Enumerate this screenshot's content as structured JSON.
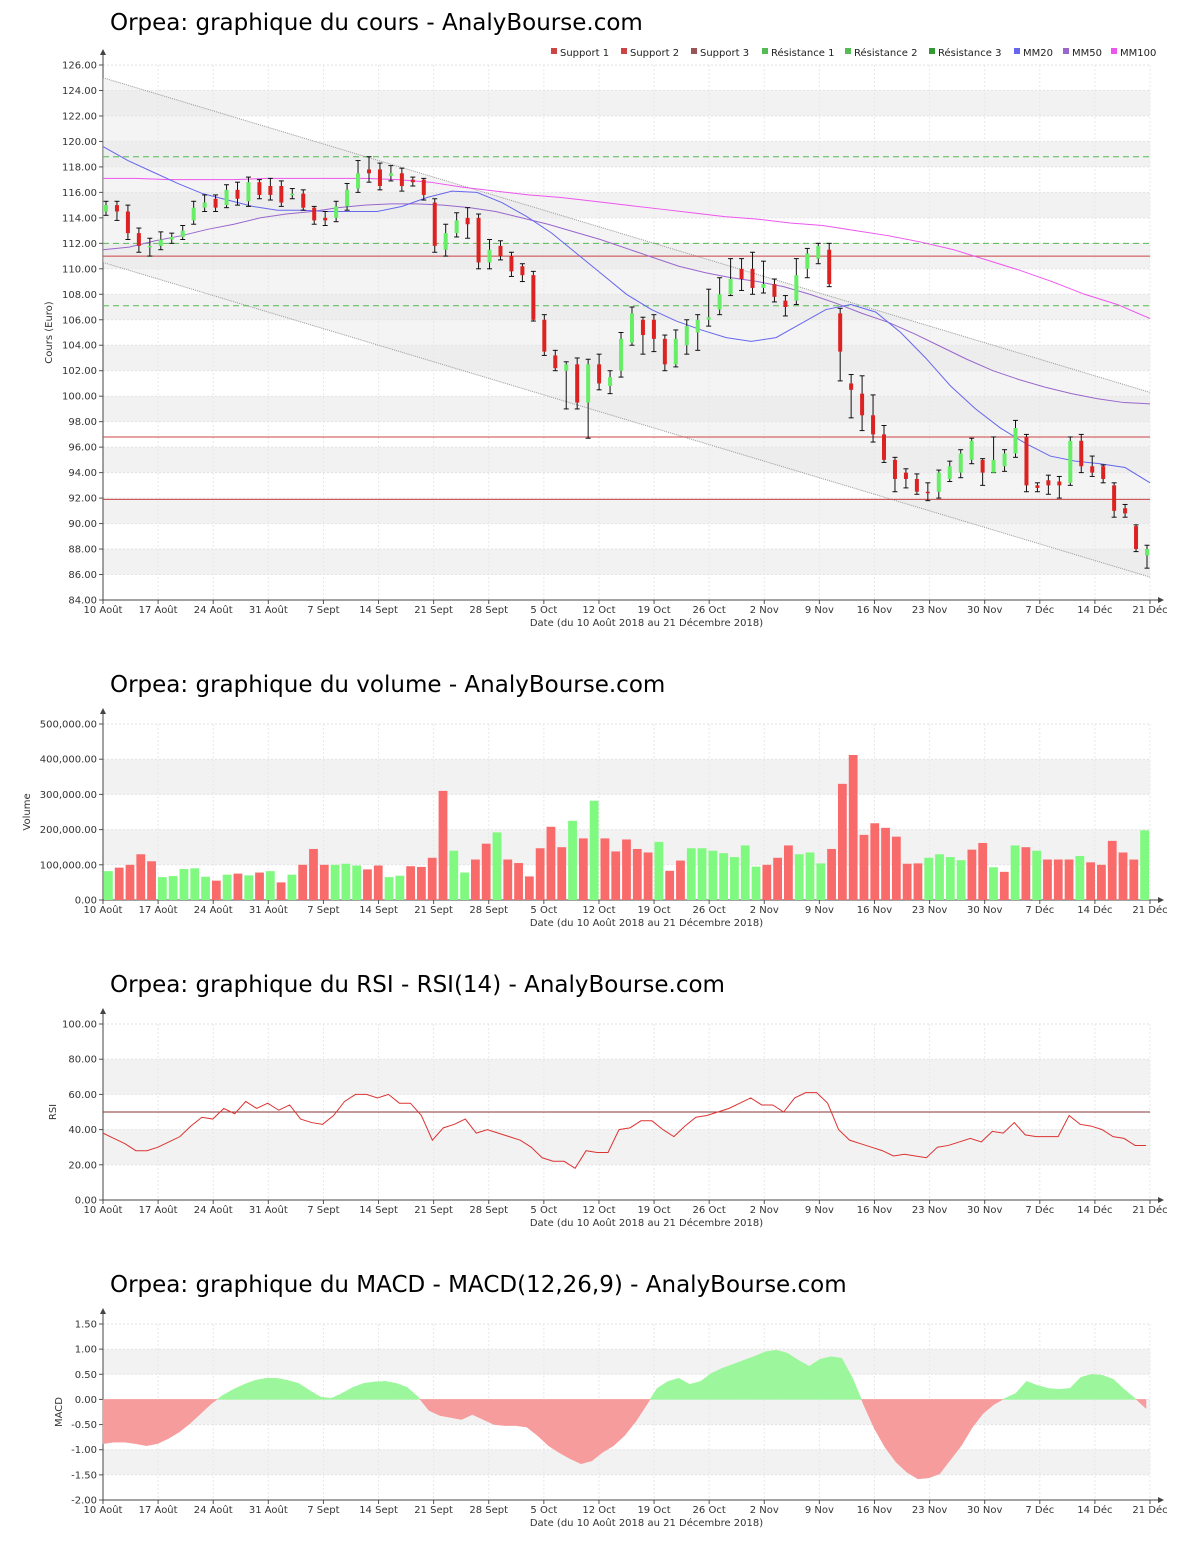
{
  "x_axis": {
    "ticks": [
      "10 Août",
      "17 Août",
      "24 Août",
      "31 Août",
      "7 Sept",
      "14 Sept",
      "21 Sept",
      "28 Sept",
      "5 Oct",
      "12 Oct",
      "19 Oct",
      "26 Oct",
      "2 Nov",
      "9 Nov",
      "16 Nov",
      "23 Nov",
      "30 Nov",
      "7 Déc",
      "14 Déc",
      "21 Déc"
    ],
    "label": "Date (du 10 Août 2018 au 21 Décembre 2018)"
  },
  "colors": {
    "up": "#66ee66",
    "down": "#dd2222",
    "vol_up": "#7ff97f",
    "vol_down": "#f96b6b",
    "mm20": "#6666ee",
    "mm50": "#9966cc",
    "mm100": "#ee55ee",
    "support": "#cc4444",
    "resistance": "#55bb55",
    "rsi": "#dd3333",
    "macd_pos": "#9cf79c",
    "macd_neg": "#f79c9c"
  },
  "chart_data": [
    {
      "type": "candlestick",
      "title": "Orpea: graphique du cours - AnalyBourse.com",
      "ylabel": "Cours (Euro)",
      "ylim": [
        84,
        126
      ],
      "yticks": [
        "84.00",
        "86.00",
        "88.00",
        "90.00",
        "92.00",
        "94.00",
        "96.00",
        "98.00",
        "100.00",
        "102.00",
        "104.00",
        "106.00",
        "108.00",
        "110.00",
        "112.00",
        "114.00",
        "116.00",
        "118.00",
        "120.00",
        "122.00",
        "124.00",
        "126.00"
      ],
      "legend": [
        "Support 1",
        "Support 2",
        "Support 3",
        "Résistance 1",
        "Résistance 2",
        "Résistance 3",
        "MM20",
        "MM50",
        "MM100"
      ],
      "support_levels": [
        111.0,
        96.8,
        91.9
      ],
      "resistance_levels": [
        107.1,
        112.0,
        118.8
      ],
      "candles": [
        [
          114.5,
          115.0,
          115.3,
          114.2
        ],
        [
          115.0,
          114.5,
          115.3,
          113.8
        ],
        [
          114.5,
          112.8,
          115.0,
          112.3
        ],
        [
          112.8,
          111.8,
          113.2,
          111.3
        ],
        [
          111.8,
          111.8,
          112.4,
          111.0
        ],
        [
          111.8,
          112.3,
          112.9,
          111.5
        ],
        [
          112.3,
          112.5,
          112.8,
          112.0
        ],
        [
          112.5,
          113.0,
          113.4,
          112.3
        ],
        [
          113.8,
          114.8,
          115.3,
          113.5
        ],
        [
          114.8,
          115.2,
          115.8,
          114.5
        ],
        [
          115.5,
          114.8,
          115.8,
          114.5
        ],
        [
          115.0,
          116.2,
          116.6,
          114.8
        ],
        [
          116.2,
          115.5,
          116.8,
          115.0
        ],
        [
          115.3,
          116.8,
          117.2,
          114.9
        ],
        [
          116.8,
          115.8,
          117.0,
          115.5
        ],
        [
          116.5,
          115.8,
          117.1,
          115.4
        ],
        [
          116.5,
          115.2,
          116.9,
          114.9
        ],
        [
          115.8,
          115.9,
          116.3,
          115.5
        ],
        [
          115.9,
          114.8,
          116.2,
          114.6
        ],
        [
          114.8,
          113.8,
          114.9,
          113.5
        ],
        [
          114.0,
          113.8,
          114.5,
          113.4
        ],
        [
          114.0,
          114.9,
          115.3,
          113.7
        ],
        [
          114.9,
          116.2,
          116.7,
          114.6
        ],
        [
          116.3,
          117.5,
          118.5,
          116.0
        ],
        [
          117.8,
          117.5,
          118.8,
          116.8
        ],
        [
          117.8,
          116.5,
          118.3,
          116.2
        ],
        [
          117.3,
          117.5,
          118.1,
          116.9
        ],
        [
          117.5,
          116.5,
          117.9,
          116.1
        ],
        [
          117.0,
          116.8,
          117.2,
          116.5
        ],
        [
          117.0,
          115.8,
          117.1,
          115.4
        ],
        [
          115.2,
          111.8,
          115.5,
          111.3
        ],
        [
          111.5,
          112.8,
          113.5,
          111.0
        ],
        [
          112.8,
          113.8,
          114.4,
          112.5
        ],
        [
          114.0,
          113.5,
          114.8,
          112.4
        ],
        [
          114.0,
          110.5,
          114.3,
          110.0
        ],
        [
          110.5,
          111.5,
          112.3,
          110.0
        ],
        [
          111.8,
          111.0,
          112.2,
          110.7
        ],
        [
          111.0,
          109.8,
          111.3,
          109.4
        ],
        [
          110.2,
          109.5,
          110.4,
          109.0
        ],
        [
          109.5,
          106.0,
          109.8,
          105.9
        ],
        [
          106.0,
          103.5,
          106.4,
          103.2
        ],
        [
          103.2,
          102.2,
          103.6,
          102.0
        ],
        [
          102.0,
          102.5,
          102.7,
          99.0
        ],
        [
          102.5,
          99.5,
          103.0,
          99.0
        ],
        [
          99.5,
          102.5,
          102.9,
          96.7
        ],
        [
          102.5,
          101.0,
          103.3,
          100.5
        ],
        [
          100.8,
          101.5,
          102.0,
          100.2
        ],
        [
          102.0,
          104.5,
          105.0,
          101.5
        ],
        [
          104.2,
          106.5,
          107.0,
          104.0
        ],
        [
          106.0,
          104.8,
          106.2,
          103.3
        ],
        [
          106.0,
          104.5,
          106.4,
          103.5
        ],
        [
          104.5,
          102.5,
          104.8,
          102.0
        ],
        [
          102.5,
          104.5,
          105.2,
          102.3
        ],
        [
          104.0,
          105.5,
          106.0,
          103.3
        ],
        [
          105.0,
          106.0,
          106.4,
          103.6
        ],
        [
          106.0,
          106.2,
          108.4,
          105.5
        ],
        [
          106.8,
          108.0,
          109.3,
          106.4
        ],
        [
          108.0,
          109.2,
          110.8,
          107.9
        ],
        [
          110.0,
          109.2,
          110.8,
          108.3
        ],
        [
          110.0,
          108.5,
          111.3,
          108.0
        ],
        [
          108.5,
          108.8,
          110.6,
          108.1
        ],
        [
          108.8,
          107.8,
          109.2,
          107.4
        ],
        [
          107.5,
          107.0,
          107.9,
          106.3
        ],
        [
          107.5,
          109.5,
          110.8,
          107.2
        ],
        [
          110.0,
          111.2,
          111.6,
          109.3
        ],
        [
          110.8,
          111.8,
          112.0,
          110.4
        ],
        [
          111.5,
          108.8,
          112.0,
          108.6
        ],
        [
          106.5,
          103.5,
          106.9,
          101.2
        ],
        [
          101.0,
          100.5,
          101.7,
          98.3
        ],
        [
          100.2,
          98.5,
          101.6,
          97.3
        ],
        [
          98.5,
          97.0,
          100.1,
          96.4
        ],
        [
          97.0,
          95.0,
          97.7,
          94.8
        ],
        [
          95.0,
          93.5,
          95.2,
          92.5
        ],
        [
          94.0,
          93.5,
          94.3,
          92.8
        ],
        [
          93.5,
          92.5,
          93.9,
          92.3
        ],
        [
          92.5,
          92.4,
          93.2,
          91.8
        ],
        [
          92.5,
          94.0,
          94.2,
          92.0
        ],
        [
          93.5,
          94.5,
          94.9,
          93.3
        ],
        [
          94.0,
          95.5,
          95.8,
          93.6
        ],
        [
          95.0,
          96.5,
          96.7,
          94.7
        ],
        [
          95.0,
          94.0,
          95.1,
          93.0
        ],
        [
          94.0,
          95.0,
          96.8,
          94.0
        ],
        [
          94.5,
          95.5,
          95.8,
          94.1
        ],
        [
          95.5,
          97.5,
          98.1,
          95.2
        ],
        [
          96.8,
          93.0,
          97.0,
          92.5
        ],
        [
          93.0,
          92.8,
          93.2,
          92.5
        ],
        [
          93.4,
          93.0,
          93.8,
          92.3
        ],
        [
          93.3,
          93.0,
          93.7,
          92.0
        ],
        [
          93.2,
          96.5,
          96.8,
          93.0
        ],
        [
          96.5,
          94.5,
          97.0,
          94.0
        ],
        [
          94.5,
          94.0,
          95.3,
          93.7
        ],
        [
          94.5,
          93.5,
          94.6,
          93.2
        ],
        [
          93.0,
          91.0,
          93.2,
          90.5
        ],
        [
          91.2,
          90.8,
          91.5,
          90.5
        ],
        [
          89.8,
          88.0,
          89.9,
          87.8
        ],
        [
          87.5,
          88.0,
          88.3,
          86.5
        ]
      ],
      "mm20": [
        119.6,
        118.5,
        117.6,
        116.7,
        115.9,
        115.4,
        114.9,
        114.6,
        114.6,
        114.5,
        114.5,
        114.5,
        114.9,
        115.6,
        116.1,
        116.0,
        115.2,
        114.1,
        112.8,
        111.2,
        109.6,
        108.0,
        106.8,
        105.9,
        105.2,
        104.6,
        104.3,
        104.6,
        105.7,
        106.8,
        107.2,
        106.6,
        105.0,
        103.0,
        100.8,
        99.0,
        97.5,
        96.3,
        95.3,
        94.9,
        94.7,
        94.4,
        93.2
      ],
      "mm50": [
        111.5,
        111.7,
        112.2,
        112.6,
        113.1,
        113.5,
        114.0,
        114.3,
        114.5,
        114.8,
        115.0,
        115.1,
        115.1,
        115.0,
        114.8,
        114.5,
        114.0,
        113.5,
        112.9,
        112.3,
        111.6,
        110.9,
        110.2,
        109.7,
        109.3,
        109.0,
        108.6,
        108.0,
        107.3,
        106.5,
        105.8,
        104.9,
        103.9,
        102.9,
        102.0,
        101.3,
        100.7,
        100.2,
        99.8,
        99.5,
        99.4
      ],
      "mm100": [
        117.1,
        117.1,
        117.0,
        117.0,
        117.0,
        117.1,
        117.1,
        117.1,
        117.1,
        117.0,
        116.8,
        116.4,
        116.1,
        115.8,
        115.6,
        115.3,
        115.0,
        114.7,
        114.4,
        114.1,
        113.9,
        113.6,
        113.4,
        113.0,
        112.6,
        112.1,
        111.5,
        110.7,
        109.9,
        109.0,
        108.0,
        107.2,
        106.1
      ]
    },
    {
      "type": "bar",
      "title": "Orpea: graphique du volume - AnalyBourse.com",
      "ylabel": "Volume",
      "ylim": [
        0,
        500000
      ],
      "yticks": [
        "0.00",
        "100,000.00",
        "200,000.00",
        "300,000.00",
        "400,000.00",
        "500,000.00"
      ],
      "values": [
        82000,
        92000,
        100000,
        130000,
        110000,
        65000,
        68000,
        88000,
        90000,
        66000,
        55000,
        72000,
        75000,
        70000,
        78000,
        82000,
        50000,
        72000,
        100000,
        145000,
        100000,
        100000,
        103000,
        98000,
        87000,
        98000,
        65000,
        69000,
        96000,
        94000,
        120000,
        310000,
        140000,
        78000,
        115000,
        160000,
        192000,
        115000,
        105000,
        67000,
        147000,
        208000,
        150000,
        225000,
        175000,
        282000,
        175000,
        138000,
        172000,
        145000,
        135000,
        165000,
        83000,
        112000,
        147000,
        147000,
        140000,
        133000,
        122000,
        155000,
        95000,
        100000,
        120000,
        155000,
        130000,
        135000,
        104000,
        145000,
        330000,
        412000,
        185000,
        218000,
        205000,
        180000,
        103000,
        104000,
        120000,
        130000,
        122000,
        113000,
        143000,
        162000,
        93000,
        80000,
        155000,
        150000,
        140000,
        115000,
        115000,
        115000,
        125000,
        107000,
        100000,
        168000,
        135000,
        115000,
        198000
      ],
      "up": [
        true,
        false,
        false,
        false,
        false,
        true,
        true,
        true,
        true,
        true,
        false,
        true,
        false,
        true,
        false,
        true,
        false,
        true,
        false,
        false,
        false,
        true,
        true,
        true,
        false,
        false,
        true,
        true,
        false,
        false,
        false,
        false,
        true,
        true,
        false,
        false,
        true,
        false,
        false,
        false,
        false,
        false,
        false,
        true,
        false,
        true,
        false,
        false,
        false,
        false,
        false,
        true,
        false,
        false,
        true,
        true,
        true,
        true,
        true,
        true,
        true,
        false,
        false,
        false,
        true,
        true,
        true,
        false,
        false,
        false,
        false,
        false,
        false,
        false,
        false,
        false,
        true,
        true,
        true,
        true,
        false,
        false,
        true,
        false,
        true,
        false,
        true,
        false,
        false,
        false,
        true,
        false,
        false,
        false,
        false,
        false,
        true
      ]
    },
    {
      "type": "line",
      "title": "Orpea: graphique du RSI - RSI(14) - AnalyBourse.com",
      "ylabel": "RSI",
      "ylim": [
        0,
        100
      ],
      "yticks": [
        "0.00",
        "20.00",
        "40.00",
        "60.00",
        "80.00",
        "100.00"
      ],
      "reference_line": 50,
      "values": [
        38,
        35,
        32,
        28,
        28,
        30,
        33,
        36,
        42,
        47,
        46,
        52,
        49,
        56,
        52,
        55,
        51,
        54,
        46,
        44,
        43,
        48,
        56,
        60,
        60,
        58,
        60,
        55,
        55,
        48,
        34,
        41,
        43,
        46,
        38,
        40,
        38,
        36,
        34,
        30,
        24,
        22,
        22,
        18,
        28,
        27,
        27,
        40,
        41,
        45,
        45,
        40,
        36,
        42,
        47,
        48,
        50,
        52,
        55,
        58,
        54,
        54,
        50,
        58,
        61,
        61,
        55,
        40,
        34,
        32,
        30,
        28,
        25,
        26,
        25,
        24,
        30,
        31,
        33,
        35,
        33,
        39,
        38,
        44,
        37,
        36,
        36,
        36,
        48,
        43,
        42,
        40,
        36,
        35,
        31,
        31
      ]
    },
    {
      "type": "area",
      "title": "Orpea: graphique du MACD - MACD(12,26,9) - AnalyBourse.com",
      "ylabel": "MACD",
      "ylim": [
        -2,
        1.5
      ],
      "yticks": [
        "-2.00",
        "-1.50",
        "-1.00",
        "-0.50",
        "0.00",
        "0.50",
        "1.00",
        "1.50"
      ],
      "values": [
        -0.88,
        -0.85,
        -0.85,
        -0.88,
        -0.92,
        -0.88,
        -0.78,
        -0.65,
        -0.48,
        -0.28,
        -0.08,
        0.08,
        0.2,
        0.3,
        0.38,
        0.42,
        0.42,
        0.38,
        0.32,
        0.18,
        0.05,
        0.02,
        0.12,
        0.24,
        0.32,
        0.35,
        0.36,
        0.32,
        0.24,
        0.05,
        -0.22,
        -0.32,
        -0.36,
        -0.4,
        -0.3,
        -0.4,
        -0.5,
        -0.52,
        -0.52,
        -0.55,
        -0.72,
        -0.92,
        -1.06,
        -1.18,
        -1.28,
        -1.22,
        -1.05,
        -0.92,
        -0.72,
        -0.45,
        -0.12,
        0.22,
        0.36,
        0.42,
        0.3,
        0.36,
        0.52,
        0.62,
        0.7,
        0.78,
        0.86,
        0.95,
        0.98,
        0.92,
        0.78,
        0.66,
        0.8,
        0.85,
        0.82,
        0.42,
        -0.1,
        -0.58,
        -0.96,
        -1.25,
        -1.45,
        -1.58,
        -1.56,
        -1.48,
        -1.2,
        -0.92,
        -0.56,
        -0.28,
        -0.1,
        0.02,
        0.12,
        0.36,
        0.28,
        0.22,
        0.2,
        0.22,
        0.44,
        0.5,
        0.48,
        0.4,
        0.2,
        0.02,
        -0.18
      ]
    }
  ]
}
